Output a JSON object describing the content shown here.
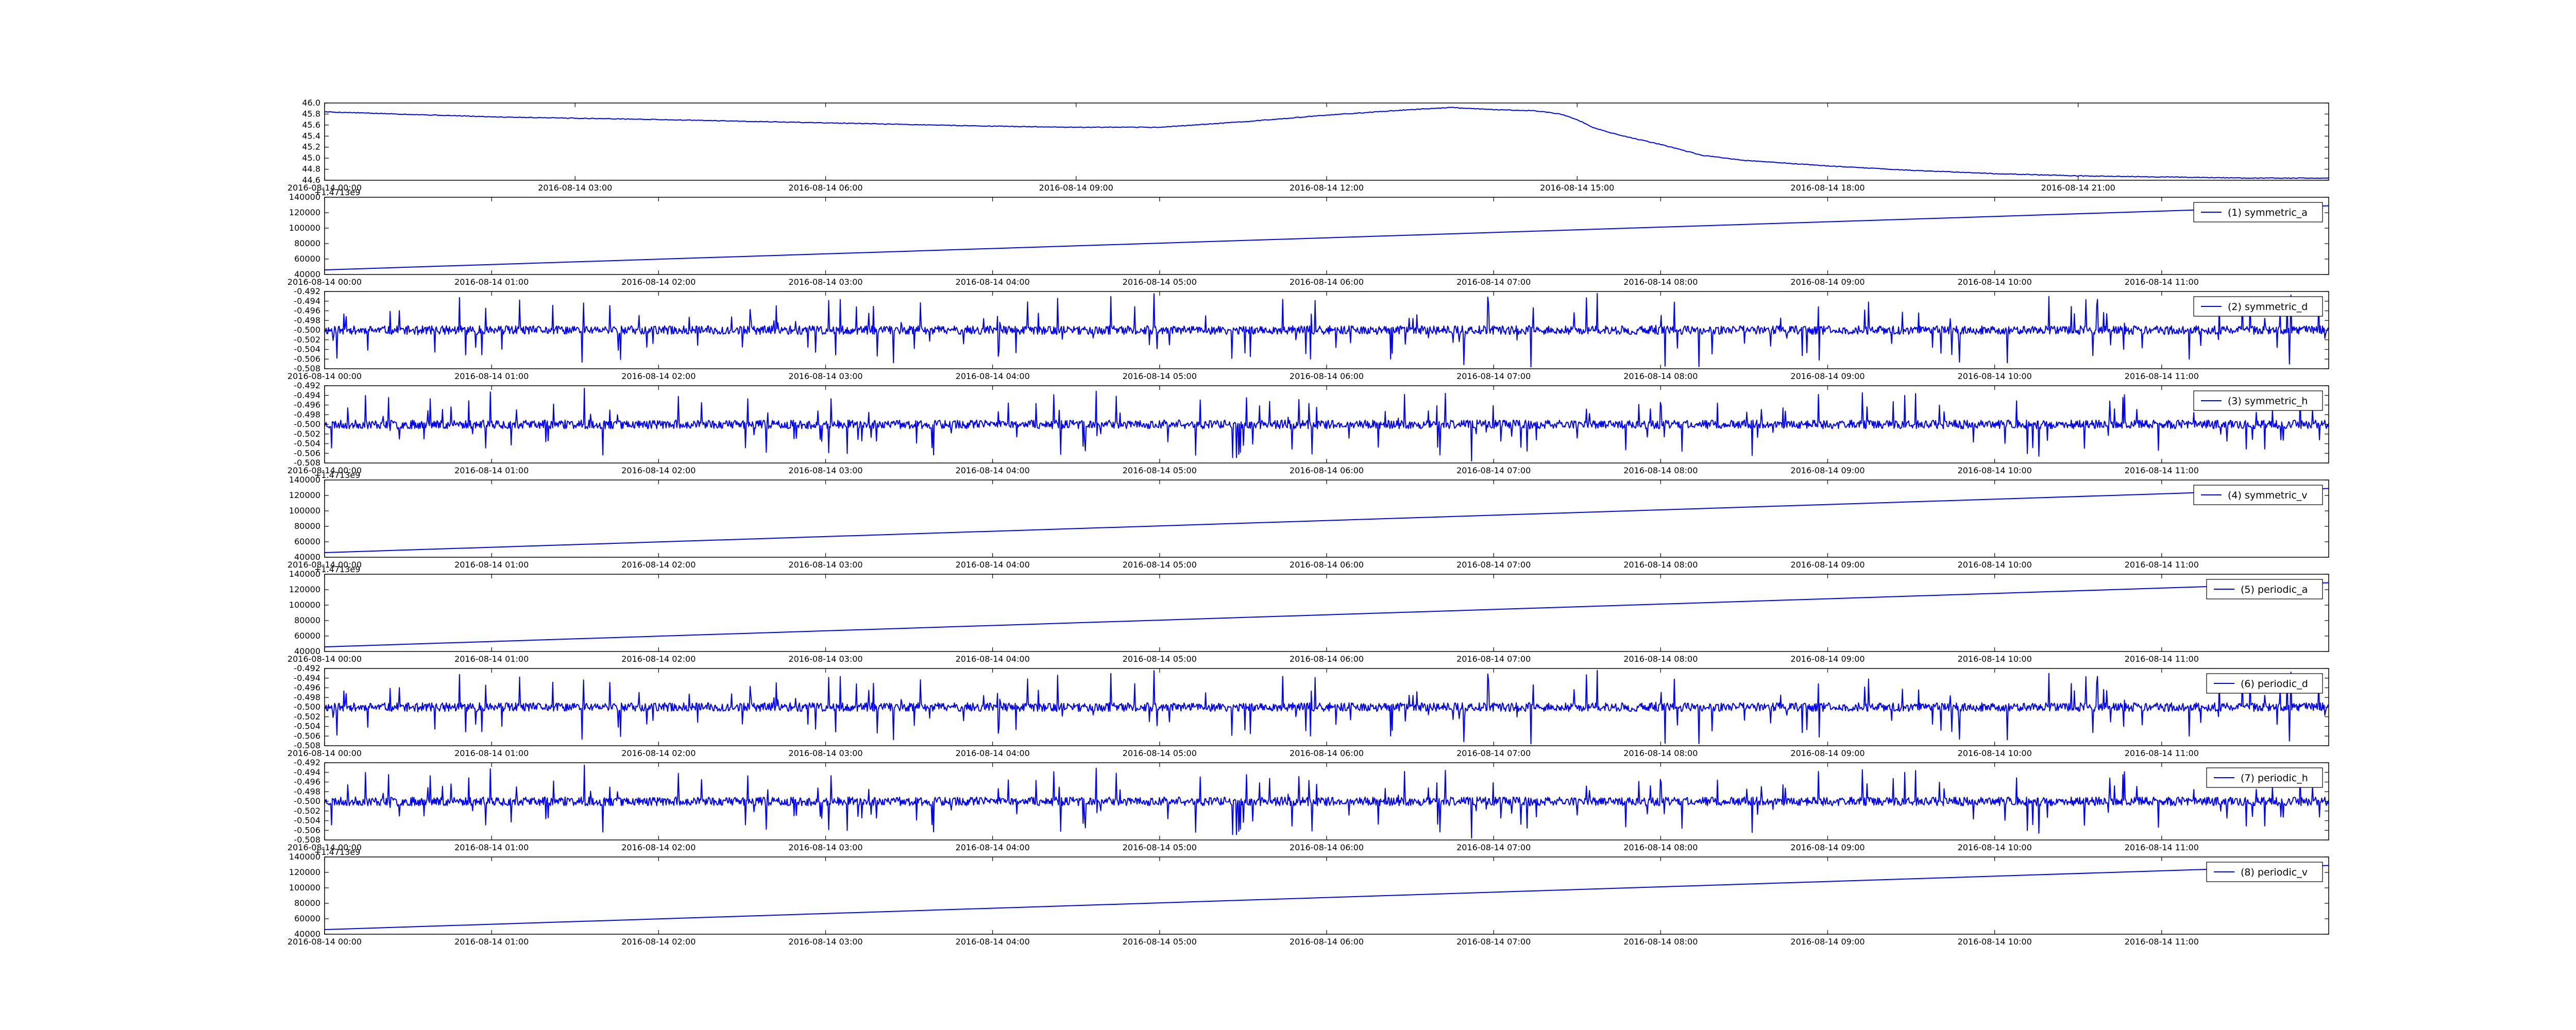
{
  "figure": {
    "background": "#ffffff",
    "line_color": "#0000ff",
    "axis_color": "#000000"
  },
  "chart_data": [
    {
      "type": "line",
      "name": "",
      "signal": "decay",
      "ylim": [
        44.6,
        46.0
      ],
      "yticks": [
        "46.0",
        "45.8",
        "45.6",
        "45.4",
        "45.2",
        "45.0",
        "44.8",
        "44.6"
      ],
      "xticks": [
        "2016-08-14 00:00",
        "2016-08-14 03:00",
        "2016-08-14 06:00",
        "2016-08-14 09:00",
        "2016-08-14 12:00",
        "2016-08-14 15:00",
        "2016-08-14 18:00",
        "2016-08-14 21:00"
      ],
      "x": [
        0,
        2,
        4,
        6,
        8,
        9,
        10,
        11,
        12,
        13,
        13.5,
        14,
        14.5,
        14.8,
        15,
        15.2,
        15.5,
        16,
        16.5,
        17,
        18,
        19,
        20,
        21,
        22,
        23,
        24
      ],
      "y": [
        45.84,
        45.75,
        45.7,
        45.64,
        45.58,
        45.56,
        45.56,
        45.66,
        45.78,
        45.88,
        45.92,
        45.88,
        45.86,
        45.8,
        45.7,
        45.55,
        45.42,
        45.25,
        45.05,
        44.96,
        44.86,
        44.78,
        44.72,
        44.68,
        44.66,
        44.64,
        44.64
      ],
      "legend": null,
      "offset_text": ""
    },
    {
      "type": "line",
      "name": "(1) symmetric_a",
      "signal": "linear",
      "ylim": [
        40000,
        140000
      ],
      "yticks": [
        "140000",
        "120000",
        "100000",
        "80000",
        "60000",
        "40000"
      ],
      "xticks": [
        "2016-08-14 00:00",
        "2016-08-14 01:00",
        "2016-08-14 02:00",
        "2016-08-14 03:00",
        "2016-08-14 04:00",
        "2016-08-14 05:00",
        "2016-08-14 06:00",
        "2016-08-14 07:00",
        "2016-08-14 08:00",
        "2016-08-14 09:00",
        "2016-08-14 10:00",
        "2016-08-14 11:00"
      ],
      "x": [
        0,
        12
      ],
      "y": [
        46000,
        129000
      ],
      "legend": "(1) symmetric_a",
      "offset_text": "+1.4713e9"
    },
    {
      "type": "line",
      "name": "(2) symmetric_d",
      "signal": "noise",
      "seed": 11,
      "ylim": [
        -0.508,
        -0.492
      ],
      "center": -0.5,
      "yticks": [
        "-0.492",
        "-0.494",
        "-0.496",
        "-0.498",
        "-0.500",
        "-0.502",
        "-0.504",
        "-0.506",
        "-0.508"
      ],
      "xticks": [
        "2016-08-14 00:00",
        "2016-08-14 01:00",
        "2016-08-14 02:00",
        "2016-08-14 03:00",
        "2016-08-14 04:00",
        "2016-08-14 05:00",
        "2016-08-14 06:00",
        "2016-08-14 07:00",
        "2016-08-14 08:00",
        "2016-08-14 09:00",
        "2016-08-14 10:00",
        "2016-08-14 11:00"
      ],
      "legend": "(2) symmetric_d",
      "offset_text": ""
    },
    {
      "type": "line",
      "name": "(3) symmetric_h",
      "signal": "noise",
      "seed": 23,
      "ylim": [
        -0.508,
        -0.492
      ],
      "center": -0.5,
      "yticks": [
        "-0.492",
        "-0.494",
        "-0.496",
        "-0.498",
        "-0.500",
        "-0.502",
        "-0.504",
        "-0.506",
        "-0.508"
      ],
      "xticks": [
        "2016-08-14 00:00",
        "2016-08-14 01:00",
        "2016-08-14 02:00",
        "2016-08-14 03:00",
        "2016-08-14 04:00",
        "2016-08-14 05:00",
        "2016-08-14 06:00",
        "2016-08-14 07:00",
        "2016-08-14 08:00",
        "2016-08-14 09:00",
        "2016-08-14 10:00",
        "2016-08-14 11:00"
      ],
      "legend": "(3) symmetric_h",
      "offset_text": ""
    },
    {
      "type": "line",
      "name": "(4) symmetric_v",
      "signal": "linear",
      "ylim": [
        40000,
        140000
      ],
      "yticks": [
        "140000",
        "120000",
        "100000",
        "80000",
        "60000",
        "40000"
      ],
      "xticks": [
        "2016-08-14 00:00",
        "2016-08-14 01:00",
        "2016-08-14 02:00",
        "2016-08-14 03:00",
        "2016-08-14 04:00",
        "2016-08-14 05:00",
        "2016-08-14 06:00",
        "2016-08-14 07:00",
        "2016-08-14 08:00",
        "2016-08-14 09:00",
        "2016-08-14 10:00",
        "2016-08-14 11:00"
      ],
      "x": [
        0,
        12
      ],
      "y": [
        46000,
        129000
      ],
      "legend": "(4) symmetric_v",
      "offset_text": "+1.4713e9"
    },
    {
      "type": "line",
      "name": "(5) periodic_a",
      "signal": "linear",
      "ylim": [
        40000,
        140000
      ],
      "yticks": [
        "140000",
        "120000",
        "100000",
        "80000",
        "60000",
        "40000"
      ],
      "xticks": [
        "2016-08-14 00:00",
        "2016-08-14 01:00",
        "2016-08-14 02:00",
        "2016-08-14 03:00",
        "2016-08-14 04:00",
        "2016-08-14 05:00",
        "2016-08-14 06:00",
        "2016-08-14 07:00",
        "2016-08-14 08:00",
        "2016-08-14 09:00",
        "2016-08-14 10:00",
        "2016-08-14 11:00"
      ],
      "x": [
        0,
        12
      ],
      "y": [
        46000,
        129000
      ],
      "legend": "(5) periodic_a",
      "offset_text": "+1.4713e9"
    },
    {
      "type": "line",
      "name": "(6) periodic_d",
      "signal": "noise",
      "seed": 11,
      "ylim": [
        -0.508,
        -0.492
      ],
      "center": -0.5,
      "yticks": [
        "-0.492",
        "-0.494",
        "-0.496",
        "-0.498",
        "-0.500",
        "-0.502",
        "-0.504",
        "-0.506",
        "-0.508"
      ],
      "xticks": [
        "2016-08-14 00:00",
        "2016-08-14 01:00",
        "2016-08-14 02:00",
        "2016-08-14 03:00",
        "2016-08-14 04:00",
        "2016-08-14 05:00",
        "2016-08-14 06:00",
        "2016-08-14 07:00",
        "2016-08-14 08:00",
        "2016-08-14 09:00",
        "2016-08-14 10:00",
        "2016-08-14 11:00"
      ],
      "legend": "(6) periodic_d",
      "offset_text": ""
    },
    {
      "type": "line",
      "name": "(7) periodic_h",
      "signal": "noise",
      "seed": 23,
      "ylim": [
        -0.508,
        -0.492
      ],
      "center": -0.5,
      "yticks": [
        "-0.492",
        "-0.494",
        "-0.496",
        "-0.498",
        "-0.500",
        "-0.502",
        "-0.504",
        "-0.506",
        "-0.508"
      ],
      "xticks": [
        "2016-08-14 00:00",
        "2016-08-14 01:00",
        "2016-08-14 02:00",
        "2016-08-14 03:00",
        "2016-08-14 04:00",
        "2016-08-14 05:00",
        "2016-08-14 06:00",
        "2016-08-14 07:00",
        "2016-08-14 08:00",
        "2016-08-14 09:00",
        "2016-08-14 10:00",
        "2016-08-14 11:00"
      ],
      "legend": "(7) periodic_h",
      "offset_text": ""
    },
    {
      "type": "line",
      "name": "(8) periodic_v",
      "signal": "linear",
      "ylim": [
        40000,
        140000
      ],
      "yticks": [
        "140000",
        "120000",
        "100000",
        "80000",
        "60000",
        "40000"
      ],
      "xticks": [
        "2016-08-14 00:00",
        "2016-08-14 01:00",
        "2016-08-14 02:00",
        "2016-08-14 03:00",
        "2016-08-14 04:00",
        "2016-08-14 05:00",
        "2016-08-14 06:00",
        "2016-08-14 07:00",
        "2016-08-14 08:00",
        "2016-08-14 09:00",
        "2016-08-14 10:00",
        "2016-08-14 11:00"
      ],
      "x": [
        0,
        12
      ],
      "y": [
        46000,
        129000
      ],
      "legend": "(8) periodic_v",
      "offset_text": "+1.4713e9"
    }
  ]
}
